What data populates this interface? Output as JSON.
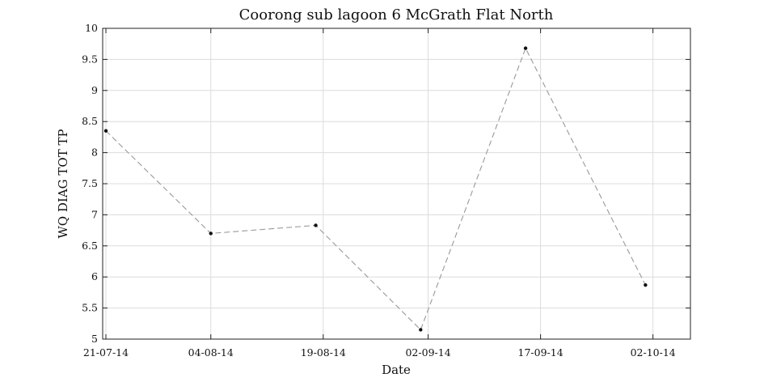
{
  "chart_data": {
    "type": "line",
    "title": "Coorong sub lagoon 6 McGrath Flat North",
    "xlabel": "Date",
    "ylabel": "WQ DIAG TOT TP",
    "x_tick_labels": [
      "21-07-14",
      "04-08-14",
      "19-08-14",
      "02-09-14",
      "17-09-14",
      "02-10-14"
    ],
    "x_tick_dates": [
      "2014-07-21",
      "2014-08-04",
      "2014-08-19",
      "2014-09-02",
      "2014-09-17",
      "2014-10-02"
    ],
    "xlim": [
      "2014-07-21",
      "2014-10-07"
    ],
    "ylim": [
      5,
      10
    ],
    "y_ticks": [
      5,
      5.5,
      6,
      6.5,
      7,
      7.5,
      8,
      8.5,
      9,
      9.5,
      10
    ],
    "y_tick_labels": [
      "5",
      "5.5",
      "6",
      "6.5",
      "7",
      "7.5",
      "8",
      "8.5",
      "9",
      "9.5",
      "10"
    ],
    "grid": true,
    "series": [
      {
        "x": [
          "2014-07-21",
          "2014-08-04",
          "2014-08-18",
          "2014-09-01",
          "2014-09-15",
          "2014-10-01"
        ],
        "y": [
          8.35,
          6.7,
          6.83,
          5.15,
          9.68,
          5.87
        ],
        "line_style": "dashed",
        "line_color": "#999999",
        "marker_color": "#111111"
      }
    ]
  }
}
